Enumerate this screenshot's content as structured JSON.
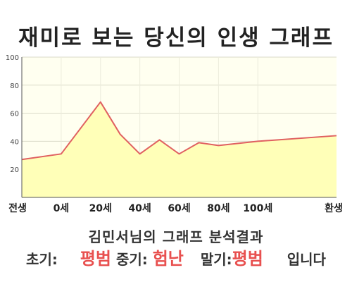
{
  "title": "재미로 보는 당신의 인생 그래프",
  "chart_data": {
    "type": "area",
    "x_labels": [
      "전생",
      "0세",
      "20세",
      "40세",
      "60세",
      "80세",
      "100세",
      "환생"
    ],
    "y_ticks": [
      20,
      40,
      60,
      80,
      100
    ],
    "ylim": [
      0,
      100
    ],
    "x_range": [
      -20,
      140
    ],
    "points": [
      {
        "x": -20,
        "y": 27
      },
      {
        "x": 0,
        "y": 31
      },
      {
        "x": 20,
        "y": 68
      },
      {
        "x": 30,
        "y": 45
      },
      {
        "x": 40,
        "y": 31
      },
      {
        "x": 50,
        "y": 41
      },
      {
        "x": 60,
        "y": 31
      },
      {
        "x": 70,
        "y": 39
      },
      {
        "x": 80,
        "y": 37
      },
      {
        "x": 100,
        "y": 40
      },
      {
        "x": 140,
        "y": 44
      }
    ],
    "grid": true,
    "line_color": "#e06060",
    "fill_color": "#ffffb8",
    "plot_bg_color": "#fffff0"
  },
  "summary": {
    "headline": "김민서님의 그래프 분석결과",
    "early_label": "초기:",
    "early_value": "평범",
    "middle_label": "중기:",
    "middle_value": "험난",
    "late_label": "말기:",
    "late_value": "평범",
    "ending": "입니다"
  },
  "colors": {
    "highlight": "#e8504f",
    "text": "#333333"
  }
}
